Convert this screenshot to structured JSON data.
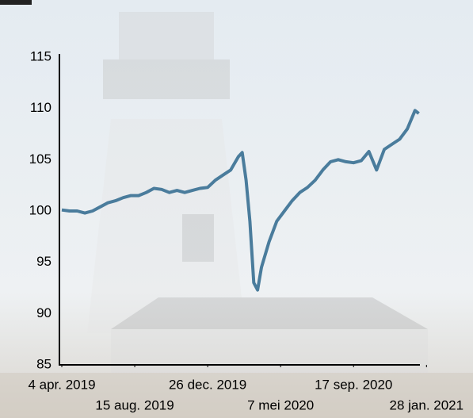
{
  "chart_data": {
    "type": "line",
    "x": [
      "2019-04-04",
      "2019-04-18",
      "2019-05-02",
      "2019-05-16",
      "2019-05-30",
      "2019-06-13",
      "2019-06-27",
      "2019-07-11",
      "2019-07-25",
      "2019-08-08",
      "2019-08-22",
      "2019-09-05",
      "2019-09-19",
      "2019-10-03",
      "2019-10-17",
      "2019-10-31",
      "2019-11-14",
      "2019-11-28",
      "2019-12-12",
      "2019-12-26",
      "2020-01-09",
      "2020-01-23",
      "2020-02-06",
      "2020-02-20",
      "2020-02-27",
      "2020-03-05",
      "2020-03-12",
      "2020-03-19",
      "2020-03-26",
      "2020-04-02",
      "2020-04-16",
      "2020-04-30",
      "2020-05-14",
      "2020-05-28",
      "2020-06-11",
      "2020-06-25",
      "2020-07-09",
      "2020-07-23",
      "2020-08-06",
      "2020-08-20",
      "2020-09-03",
      "2020-09-17",
      "2020-10-01",
      "2020-10-15",
      "2020-10-29",
      "2020-11-12",
      "2020-11-26",
      "2020-12-10",
      "2020-12-24",
      "2021-01-07",
      "2021-01-14"
    ],
    "values": [
      100.1,
      100.0,
      100.0,
      99.8,
      100.0,
      100.4,
      100.8,
      101.0,
      101.3,
      101.5,
      101.5,
      101.8,
      102.2,
      102.1,
      101.8,
      102.0,
      101.8,
      102.0,
      102.2,
      102.3,
      103.0,
      103.5,
      104.0,
      105.3,
      105.7,
      103.0,
      99.0,
      93.0,
      92.3,
      94.5,
      97.0,
      99.0,
      100.0,
      101.0,
      101.8,
      102.3,
      103.0,
      104.0,
      104.8,
      105.0,
      104.8,
      104.7,
      104.9,
      105.8,
      104.0,
      106.0,
      106.5,
      107.0,
      108.0,
      109.8,
      109.5
    ],
    "color": "#4a7c9c",
    "xlim": [
      "2019-04-04",
      "2021-01-16"
    ],
    "xticks": [
      {
        "value": "2019-04-04",
        "label": "4 apr. 2019"
      },
      {
        "value": "2019-08-15",
        "label": "15 aug. 2019"
      },
      {
        "value": "2019-12-26",
        "label": "26 dec. 2019"
      },
      {
        "value": "2020-05-07",
        "label": "7 mei 2020"
      },
      {
        "value": "2020-09-17",
        "label": "17 sep. 2020"
      },
      {
        "value": "2021-01-28",
        "label": "28 jan. 2021"
      }
    ],
    "ylim": [
      85,
      115
    ],
    "yticks": [
      85,
      90,
      95,
      100,
      105,
      110,
      115
    ]
  }
}
